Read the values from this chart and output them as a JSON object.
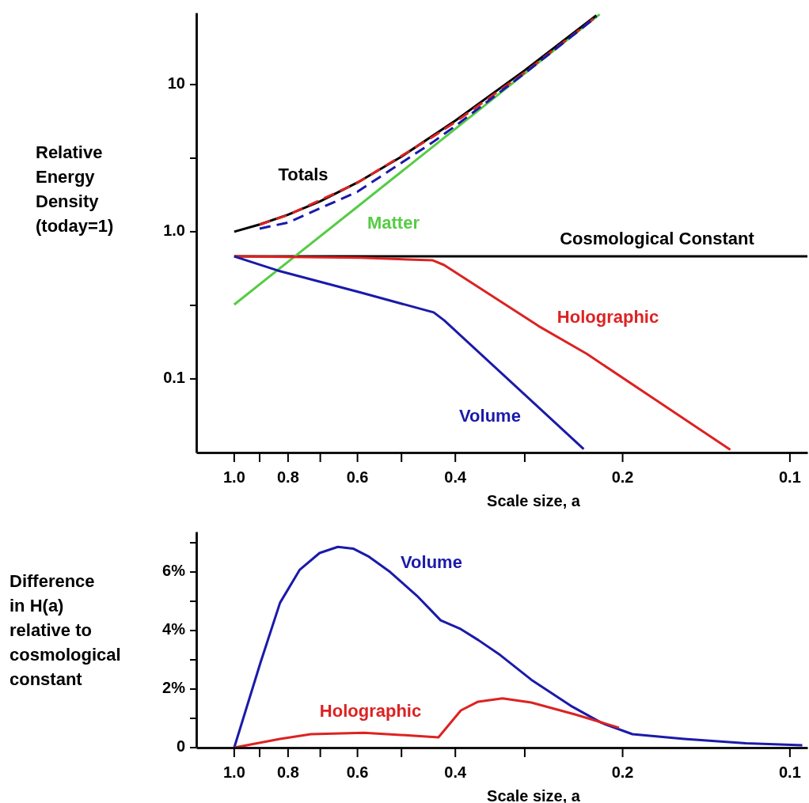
{
  "chart_data": [
    {
      "type": "line",
      "ylabel": "Relative Energy Density (today=1)",
      "xlabel": "Scale size, a",
      "log": "xy",
      "xlim": [
        1.17,
        0.093
      ],
      "ylim": [
        0.0316,
        30.8
      ],
      "xticks": [
        {
          "value": 1,
          "label": "1.0"
        },
        {
          "value": 0.9,
          "label": null
        },
        0.8,
        {
          "value": 0.7,
          "label": null
        },
        0.6,
        {
          "value": 0.5,
          "label": null
        },
        0.4,
        {
          "value": 0.3,
          "label": null
        },
        0.2,
        0.1
      ],
      "yticks": [
        0.1,
        {
          "value": 0.316,
          "label": null
        },
        {
          "value": 1,
          "label": "1.0"
        },
        {
          "value": 3.16,
          "label": null
        },
        10
      ],
      "series": [
        {
          "name": "Cosmological Constant",
          "color": "#000000",
          "x": [
            1,
            0.093
          ],
          "values": [
            0.68,
            0.68
          ]
        },
        {
          "name": "Matter",
          "color": "#55cc44",
          "x": [
            1,
            0.8,
            0.6,
            0.4,
            0.3,
            0.22
          ],
          "values": [
            0.32,
            0.625,
            1.48,
            5,
            11.9,
            30
          ]
        },
        {
          "name": "Holographic",
          "color": "#dd2222",
          "x": [
            1,
            0.8,
            0.592,
            0.44,
            0.419,
            0.283,
            0.232,
            0.128
          ],
          "values": [
            0.68,
            0.675,
            0.665,
            0.64,
            0.594,
            0.228,
            0.148,
            0.033
          ]
        },
        {
          "name": "Volume",
          "color": "#1a1aaa",
          "x": [
            1,
            0.835,
            0.592,
            0.4375,
            0.419,
            0.235
          ],
          "values": [
            0.68,
            0.545,
            0.386,
            0.283,
            0.25,
            0.0334
          ]
        },
        {
          "name": "Totals",
          "color": "#000000",
          "x": [
            1,
            0.9,
            0.8,
            0.7,
            0.6,
            0.5,
            0.4,
            0.3,
            0.25,
            0.223
          ],
          "values": [
            1,
            1.12,
            1.305,
            1.61,
            2.16,
            3.24,
            5.68,
            12.5,
            21.2,
            29.5
          ]
        },
        {
          "color": "#dd2222",
          "line_style": "dashed",
          "x": [
            0.9,
            0.8,
            0.6,
            0.44,
            0.4,
            0.3,
            0.25,
            0.223
          ],
          "values": [
            1.117,
            1.3,
            2.15,
            4.4,
            5.56,
            12.1,
            20.7,
            29
          ]
        },
        {
          "color": "#1a1aaa",
          "line_style": "dashed",
          "x": [
            0.9,
            0.8,
            0.6,
            0.44,
            0.4,
            0.3,
            0.25,
            0.223
          ],
          "values": [
            1.05,
            1.155,
            1.87,
            4.04,
            5.23,
            11.94,
            20.5,
            28.9
          ]
        }
      ]
    },
    {
      "type": "line",
      "ylabel": "Difference in H(a) relative to cosmological constant",
      "xlabel": "Scale size, a",
      "log": "x",
      "xlim": [
        1.17,
        0.093
      ],
      "ylim": [
        0,
        7.38
      ],
      "xticks": [
        {
          "value": 1,
          "label": "1.0"
        },
        {
          "value": 0.9,
          "label": null
        },
        0.8,
        {
          "value": 0.7,
          "label": null
        },
        0.6,
        {
          "value": 0.5,
          "label": null
        },
        0.4,
        {
          "value": 0.3,
          "label": null
        },
        0.2,
        0.1
      ],
      "yticks": [
        0,
        {
          "value": 1,
          "label": null
        },
        {
          "value": 2,
          "label": "2%"
        },
        {
          "value": 3,
          "label": null
        },
        {
          "value": 4,
          "label": "4%"
        },
        {
          "value": 5,
          "label": null
        },
        {
          "value": 6,
          "label": "6%"
        },
        {
          "value": 7,
          "label": null
        }
      ],
      "series": [
        {
          "name": "Volume",
          "color": "#1a1aaa",
          "x": [
            1,
            0.897,
            0.827,
            0.762,
            0.702,
            0.651,
            0.611,
            0.574,
            0.524,
            0.469,
            0.425,
            0.391,
            0.364,
            0.332,
            0.292,
            0.248,
            0.218,
            0.192,
            0.155,
            0.12,
            0.095
          ],
          "values": [
            0,
            2.9,
            4.95,
            6.08,
            6.65,
            6.86,
            6.8,
            6.54,
            6,
            5.19,
            4.35,
            4.05,
            3.68,
            3.16,
            2.32,
            1.43,
            0.84,
            0.46,
            0.3,
            0.15,
            0.08
          ]
        },
        {
          "name": "Holographic",
          "color": "#dd2222",
          "x": [
            1,
            0.827,
            0.728,
            0.584,
            0.469,
            0.429,
            0.391,
            0.364,
            0.329,
            0.292,
            0.243,
            0.203
          ],
          "values": [
            0,
            0.3,
            0.46,
            0.51,
            0.4,
            0.35,
            1.27,
            1.57,
            1.68,
            1.54,
            1.13,
            0.68
          ]
        }
      ]
    }
  ]
}
